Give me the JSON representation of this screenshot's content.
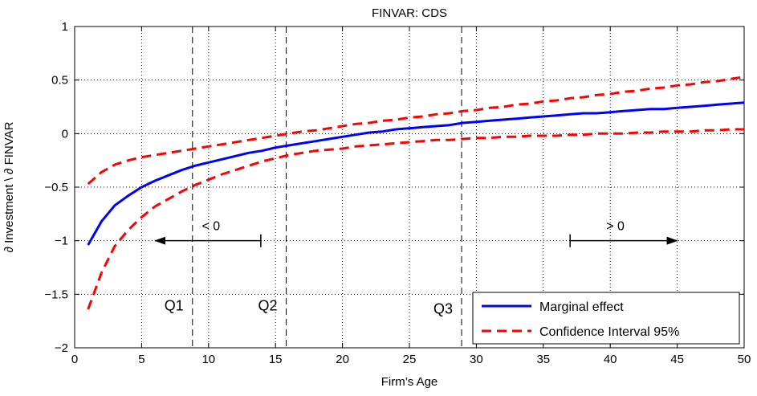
{
  "chart_data": {
    "type": "line",
    "title": "FINVAR: CDS",
    "xlabel": "Firm’s Age",
    "ylabel": "∂ Investment \\ ∂ FINVAR",
    "xlim": [
      0,
      50
    ],
    "ylim": [
      -2,
      1
    ],
    "xticks": [
      "0",
      "5",
      "10",
      "15",
      "20",
      "25",
      "30",
      "35",
      "40",
      "45",
      "50"
    ],
    "yticks": [
      "−2",
      "−1.5",
      "−1",
      "−0.5",
      "0",
      "0.5",
      "1"
    ],
    "grid": true,
    "legend_position": "bottom-right",
    "x": [
      1,
      2,
      3,
      4,
      5,
      6,
      7,
      8,
      9,
      10,
      11,
      12,
      13,
      14,
      15,
      16,
      17,
      18,
      19,
      20,
      21,
      22,
      23,
      24,
      25,
      26,
      27,
      28,
      29,
      30,
      31,
      32,
      33,
      34,
      35,
      36,
      37,
      38,
      39,
      40,
      41,
      42,
      43,
      44,
      45,
      46,
      47,
      48,
      49,
      50
    ],
    "series": [
      {
        "name": "Marginal effect",
        "color": "#0000ff",
        "style": "solid",
        "values": [
          -1.04,
          -0.82,
          -0.67,
          -0.58,
          -0.5,
          -0.44,
          -0.39,
          -0.34,
          -0.3,
          -0.27,
          -0.24,
          -0.21,
          -0.18,
          -0.16,
          -0.13,
          -0.11,
          -0.09,
          -0.07,
          -0.05,
          -0.03,
          -0.01,
          0.01,
          0.02,
          0.04,
          0.05,
          0.06,
          0.07,
          0.08,
          0.1,
          0.11,
          0.12,
          0.13,
          0.14,
          0.15,
          0.16,
          0.17,
          0.18,
          0.19,
          0.19,
          0.2,
          0.21,
          0.22,
          0.23,
          0.23,
          0.24,
          0.25,
          0.26,
          0.27,
          0.28,
          0.29
        ]
      },
      {
        "name": "Confidence Interval 95%",
        "color": "#ff0000",
        "style": "dashed",
        "values": [
          -1.64,
          -1.3,
          -1.05,
          -0.9,
          -0.78,
          -0.68,
          -0.61,
          -0.54,
          -0.48,
          -0.43,
          -0.38,
          -0.34,
          -0.3,
          -0.26,
          -0.23,
          -0.2,
          -0.18,
          -0.16,
          -0.15,
          -0.14,
          -0.12,
          -0.11,
          -0.1,
          -0.09,
          -0.08,
          -0.07,
          -0.06,
          -0.06,
          -0.05,
          -0.04,
          -0.04,
          -0.03,
          -0.03,
          -0.02,
          -0.02,
          -0.02,
          -0.01,
          -0.01,
          0.0,
          0.0,
          0.0,
          0.01,
          0.01,
          0.02,
          0.02,
          0.02,
          0.03,
          0.03,
          0.04,
          0.04
        ]
      },
      {
        "name": "",
        "color": "#ff0000",
        "style": "dashed",
        "values": [
          -0.47,
          -0.36,
          -0.29,
          -0.25,
          -0.22,
          -0.2,
          -0.18,
          -0.16,
          -0.14,
          -0.12,
          -0.1,
          -0.08,
          -0.06,
          -0.04,
          -0.02,
          0.0,
          0.02,
          0.03,
          0.05,
          0.07,
          0.09,
          0.1,
          0.12,
          0.13,
          0.15,
          0.16,
          0.18,
          0.19,
          0.21,
          0.22,
          0.24,
          0.25,
          0.27,
          0.28,
          0.3,
          0.31,
          0.33,
          0.34,
          0.36,
          0.37,
          0.39,
          0.4,
          0.42,
          0.43,
          0.45,
          0.46,
          0.48,
          0.49,
          0.51,
          0.53
        ]
      }
    ],
    "vlines": [
      {
        "x": 8.8,
        "label": "Q1",
        "label_x": 6.7,
        "label_y": -1.65
      },
      {
        "x": 15.8,
        "label": "Q2",
        "label_x": 13.7,
        "label_y": -1.65
      },
      {
        "x": 28.9,
        "label": "Q3",
        "label_x": 26.8,
        "label_y": -1.68
      }
    ],
    "annotations": [
      {
        "text": "< 0",
        "x_from": 13.9,
        "x_to": 6.0,
        "y": -1.0,
        "text_x": 9.5,
        "text_y": -0.9
      },
      {
        "text": "> 0",
        "x_from": 37.0,
        "x_to": 45.0,
        "y": -1.0,
        "text_x": 39.7,
        "text_y": -0.9
      }
    ]
  }
}
